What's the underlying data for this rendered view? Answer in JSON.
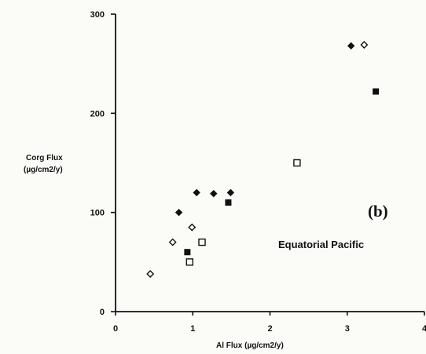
{
  "chart_data": {
    "type": "scatter",
    "panel_label": "(b)",
    "annotation": "Equatorial Pacific",
    "xlabel": "Al Flux  (µg/cm2/y)",
    "ylabel": [
      "Corg Flux",
      "(µg/cm2/y)"
    ],
    "xlim": [
      0,
      4
    ],
    "ylim": [
      0,
      300
    ],
    "x_ticks": [
      0,
      1,
      2,
      3,
      4
    ],
    "y_ticks": [
      0,
      100,
      200,
      300
    ],
    "grid": false,
    "series": [
      {
        "marker": "filled-diamond",
        "points": [
          [
            0.82,
            100
          ],
          [
            1.05,
            120
          ],
          [
            1.27,
            119
          ],
          [
            1.49,
            120
          ],
          [
            3.05,
            268
          ]
        ]
      },
      {
        "marker": "open-diamond",
        "points": [
          [
            0.45,
            38
          ],
          [
            0.74,
            70
          ],
          [
            0.99,
            85
          ],
          [
            3.22,
            269
          ]
        ]
      },
      {
        "marker": "filled-square",
        "points": [
          [
            0.93,
            60
          ],
          [
            1.46,
            110
          ],
          [
            3.37,
            222
          ]
        ]
      },
      {
        "marker": "open-square",
        "points": [
          [
            0.96,
            50
          ],
          [
            1.12,
            70
          ],
          [
            2.35,
            150
          ]
        ]
      }
    ]
  }
}
